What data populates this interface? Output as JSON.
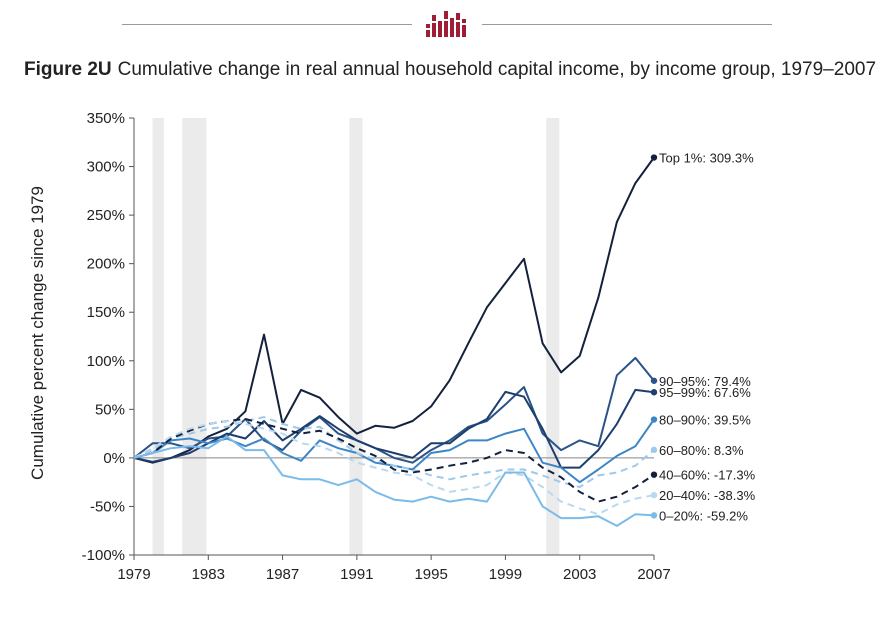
{
  "header": {
    "logo_icon": "epi-logo-icon"
  },
  "figure": {
    "label": "Figure 2U",
    "title": "Cumulative change in real annual  household capital income, by income group, 1979–2007"
  },
  "chart_data": {
    "type": "line",
    "ylabel": "Cumulative percent change since 1979",
    "xlabel": "",
    "ylim": [
      -100,
      350
    ],
    "xlim": [
      1979,
      2007
    ],
    "y_ticks": [
      "-100%",
      "-50%",
      "0%",
      "50%",
      "100%",
      "150%",
      "200%",
      "250%",
      "300%",
      "350%"
    ],
    "y_tick_values": [
      -100,
      -50,
      0,
      50,
      100,
      150,
      200,
      250,
      300,
      350
    ],
    "x_ticks": [
      "1979",
      "1983",
      "1987",
      "1991",
      "1995",
      "1999",
      "2003",
      "2007"
    ],
    "x_tick_values": [
      1979,
      1983,
      1987,
      1991,
      1995,
      1999,
      2003,
      2007
    ],
    "recessions": [
      [
        1980,
        1980.6
      ],
      [
        1981.6,
        1982.9
      ],
      [
        1990.6,
        1991.3
      ],
      [
        2001.2,
        2001.9
      ]
    ],
    "zero_line": true,
    "years": [
      1979,
      1980,
      1981,
      1982,
      1983,
      1984,
      1985,
      1986,
      1987,
      1988,
      1989,
      1990,
      1991,
      1992,
      1993,
      1994,
      1995,
      1996,
      1997,
      1998,
      1999,
      2000,
      2001,
      2002,
      2003,
      2004,
      2005,
      2006,
      2007
    ],
    "series": [
      {
        "name": "Top 1%",
        "end_label": "Top 1%: 309.3%",
        "color": "#14213d",
        "dash": false,
        "values": [
          0,
          -5,
          0,
          8,
          22,
          30,
          48,
          127,
          35,
          70,
          62,
          42,
          25,
          33,
          31,
          38,
          53,
          80,
          118,
          155,
          180,
          205,
          118,
          88,
          105,
          165,
          243,
          283,
          309.3
        ]
      },
      {
        "name": "90–95%",
        "end_label": "90–95%: 79.4%",
        "color": "#2a5387",
        "dash": false,
        "values": [
          0,
          15,
          15,
          10,
          20,
          22,
          40,
          18,
          8,
          28,
          42,
          25,
          18,
          10,
          0,
          -5,
          8,
          18,
          32,
          38,
          55,
          73,
          25,
          8,
          18,
          12,
          85,
          103,
          79.4
        ]
      },
      {
        "name": "95–99%",
        "end_label": "95–99%: 67.6%",
        "color": "#1e3f6e",
        "dash": false,
        "values": [
          0,
          -4,
          0,
          5,
          15,
          25,
          20,
          38,
          18,
          30,
          43,
          30,
          18,
          10,
          5,
          0,
          15,
          15,
          30,
          40,
          68,
          63,
          30,
          -10,
          -10,
          8,
          35,
          70,
          67.6
        ]
      },
      {
        "name": "80–90%",
        "end_label": "80–90%: 39.5%",
        "color": "#3d86c6",
        "dash": false,
        "values": [
          0,
          5,
          18,
          20,
          15,
          20,
          12,
          20,
          5,
          -3,
          18,
          10,
          5,
          -5,
          -8,
          -12,
          5,
          8,
          18,
          18,
          25,
          30,
          -5,
          -10,
          -25,
          -12,
          2,
          12,
          39.5
        ]
      },
      {
        "name": "60–80%",
        "end_label": "60–80%: 8.3%",
        "color": "#9ec9eb",
        "dash": true,
        "values": [
          0,
          8,
          20,
          25,
          30,
          32,
          38,
          42,
          35,
          30,
          32,
          18,
          5,
          -2,
          -8,
          -12,
          -18,
          -22,
          -18,
          -15,
          -12,
          -12,
          -18,
          -25,
          -30,
          -18,
          -15,
          -8,
          8.3
        ]
      },
      {
        "name": "40–60%",
        "end_label": "40–60%: -17.3%",
        "color": "#14213d",
        "dash": true,
        "values": [
          0,
          5,
          20,
          28,
          35,
          38,
          40,
          35,
          30,
          25,
          28,
          20,
          10,
          2,
          -12,
          -15,
          -12,
          -8,
          -5,
          0,
          8,
          5,
          -10,
          -20,
          -35,
          -45,
          -40,
          -30,
          -17.3
        ]
      },
      {
        "name": "20–40%",
        "end_label": "20–40%: -38.3%",
        "color": "#b8d9f1",
        "dash": true,
        "values": [
          0,
          10,
          22,
          30,
          35,
          38,
          35,
          30,
          25,
          15,
          12,
          5,
          -5,
          -10,
          -15,
          -18,
          -28,
          -35,
          -32,
          -28,
          -15,
          -18,
          -30,
          -45,
          -52,
          -58,
          -48,
          -42,
          -38.3
        ]
      },
      {
        "name": "0–20%",
        "end_label": "0–20%: -59.2%",
        "color": "#7bbbe8",
        "dash": false,
        "values": [
          0,
          5,
          10,
          12,
          10,
          22,
          8,
          8,
          -18,
          -22,
          -22,
          -28,
          -22,
          -35,
          -43,
          -45,
          -40,
          -45,
          -42,
          -45,
          -15,
          -15,
          -50,
          -62,
          -62,
          -60,
          -70,
          -58,
          -59.2
        ]
      }
    ]
  }
}
